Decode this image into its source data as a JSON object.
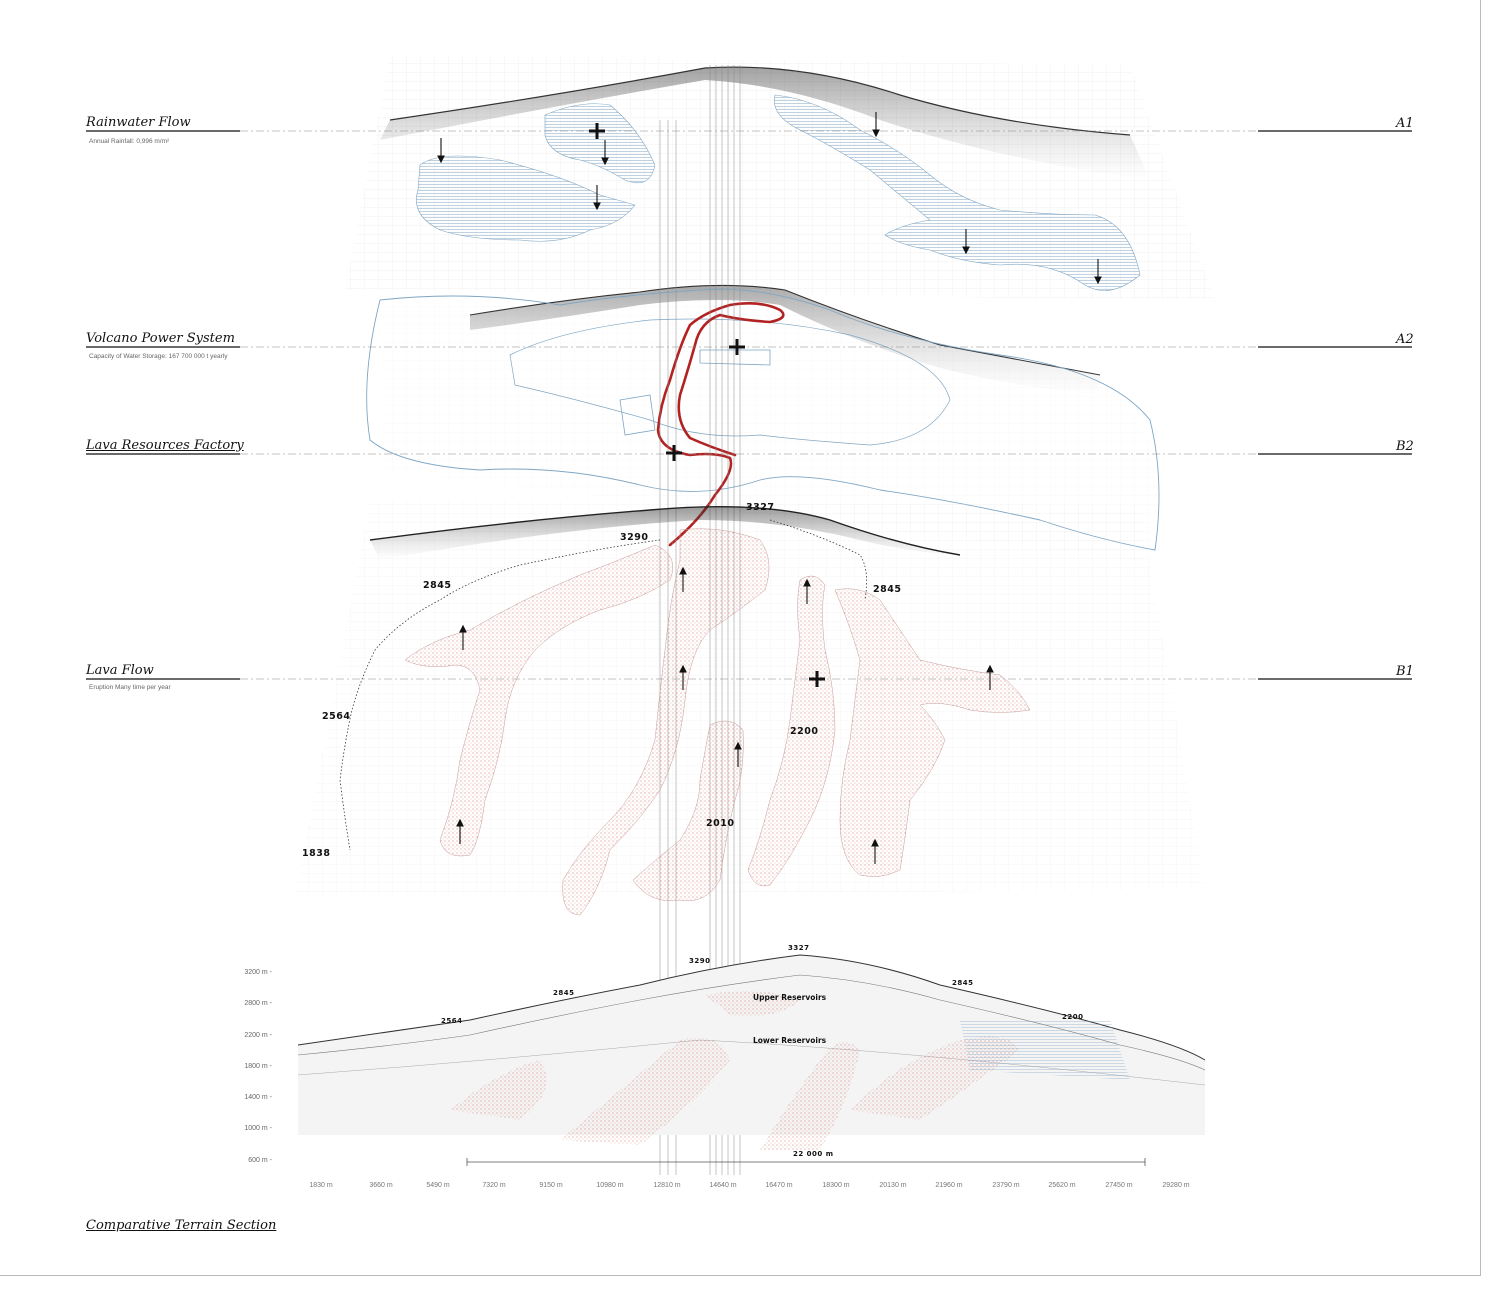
{
  "layers": [
    {
      "title": "Rainwater Flow",
      "subtitle": "Annual Rainfall: 0,996 m/m²",
      "code": "A1"
    },
    {
      "title": "Volcano Power System",
      "subtitle": "Capacity of Water Storage: 167 700 000 t yearly",
      "code": "A2"
    },
    {
      "title": "Lava Resources Factory",
      "subtitle": "",
      "code": "B2"
    },
    {
      "title": "Lava Flow",
      "subtitle": "Eruption Many time per year",
      "code": "B1"
    }
  ],
  "map_elevations": [
    "3327",
    "3290",
    "2845",
    "2845",
    "2564",
    "2200",
    "2010",
    "1838"
  ],
  "section": {
    "title": "Comparative Terrain Section",
    "y_ticks": [
      "3200 m -",
      "2800 m -",
      "2200 m -",
      "1800 m -",
      "1400 m -",
      "1000 m -",
      "600 m -"
    ],
    "x_ticks": [
      "1830 m",
      "3660 m",
      "5490 m",
      "7320 m",
      "9150 m",
      "10980 m",
      "12810 m",
      "14640 m",
      "16470 m",
      "18300 m",
      "20130 m",
      "21960 m",
      "23790 m",
      "25620 m",
      "27450 m",
      "29280 m"
    ],
    "scale_label": "22 000 m",
    "elevations": [
      "3327",
      "3290",
      "2845",
      "2845",
      "2564",
      "2200"
    ],
    "reservoirs": [
      "Upper Reservoirs",
      "Lower Reservoirs"
    ]
  },
  "colors": {
    "lava": "#c0392b",
    "water": "#5a8fb5",
    "route": "#b22222",
    "ink": "#111111"
  },
  "icons": [
    "down-arrow-icon",
    "up-arrow-icon",
    "plus-marker-icon"
  ]
}
